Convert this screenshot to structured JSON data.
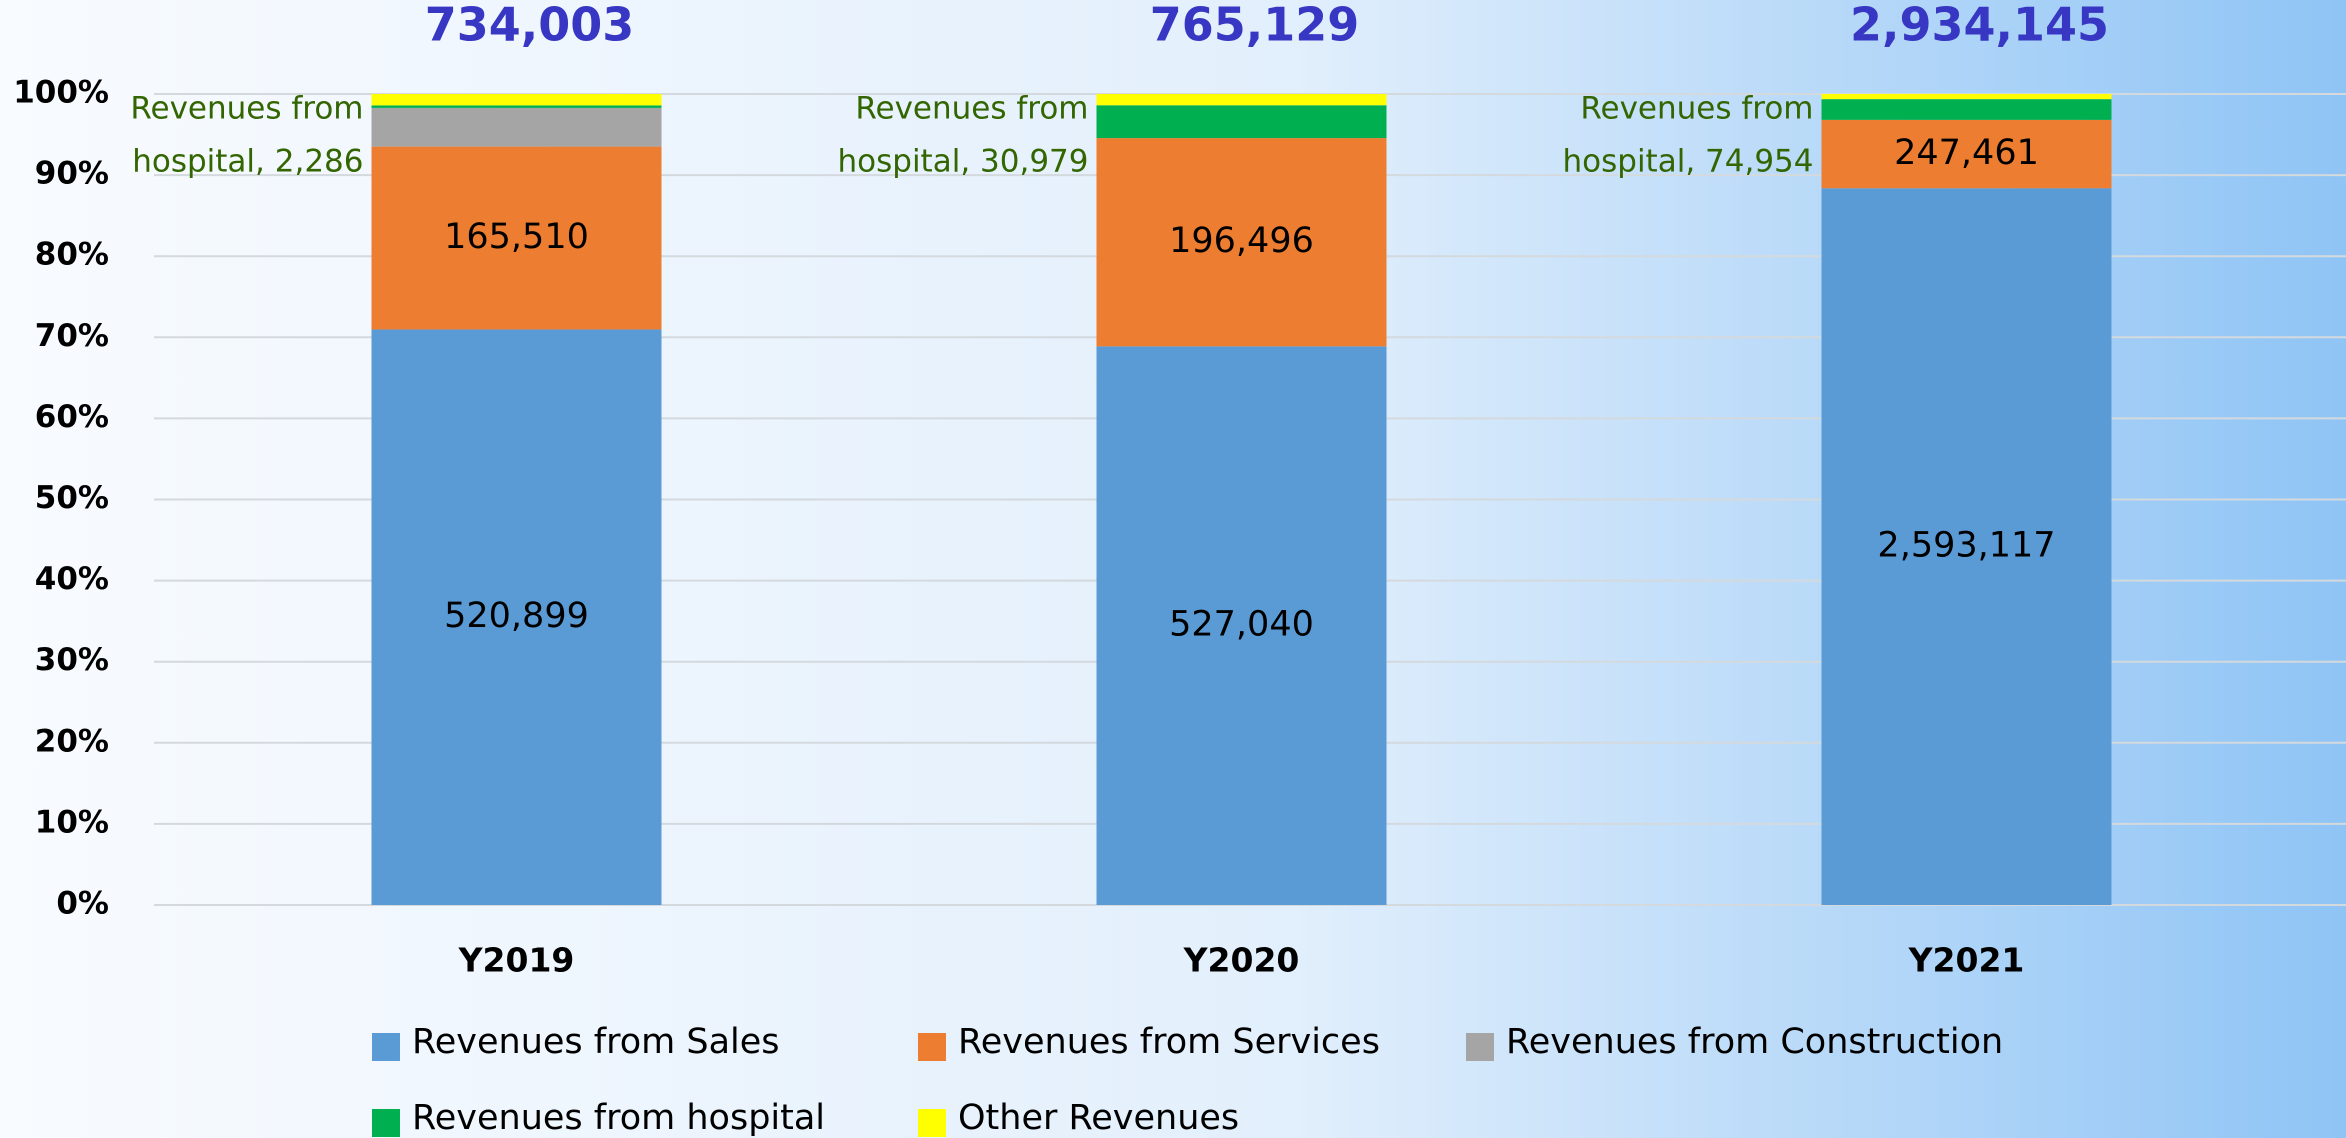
{
  "chart_data": {
    "type": "bar",
    "stacked": "percent",
    "categories": [
      "Y2019",
      "Y2020",
      "Y2021"
    ],
    "totals": [
      734003,
      765129,
      2934145
    ],
    "total_labels": [
      "734,003",
      "765,129",
      "2,934,145"
    ],
    "series": [
      {
        "name": "Revenues from Sales",
        "color": "#5b9bd5",
        "values": [
          520899,
          527040,
          2593117
        ],
        "value_labels": [
          "520,899",
          "527,040",
          "2,593,117"
        ]
      },
      {
        "name": "Revenues from Services",
        "color": "#ed7d31",
        "values": [
          165510,
          196496,
          247461
        ],
        "value_labels": [
          "165,510",
          "196,496",
          "247,461"
        ]
      },
      {
        "name": "Revenues from Construction",
        "color": "#a5a5a5",
        "values": [
          35000,
          0,
          0
        ]
      },
      {
        "name": "Revenues from hospital",
        "color": "#00b050",
        "values": [
          2286,
          30979,
          74954
        ],
        "value_labels": [
          [
            "Revenues from",
            "hospital,  2,286"
          ],
          [
            "Revenues from",
            "hospital,  30,979"
          ],
          [
            "Revenues from",
            "hospital,  74,954"
          ]
        ]
      },
      {
        "name": "Other Revenues",
        "color": "#ffff00",
        "values": [
          10308,
          10614,
          18613
        ]
      }
    ],
    "ylim": [
      0,
      100
    ],
    "yticks": [
      {
        "value": 0,
        "label": "0%"
      },
      {
        "value": 10,
        "label": "10%"
      },
      {
        "value": 20,
        "label": "20%"
      },
      {
        "value": 30,
        "label": "30%"
      },
      {
        "value": 40,
        "label": "40%"
      },
      {
        "value": 50,
        "label": "50%"
      },
      {
        "value": 60,
        "label": "60%"
      },
      {
        "value": 70,
        "label": "70%"
      },
      {
        "value": 80,
        "label": "80%"
      },
      {
        "value": 90,
        "label": "90%"
      },
      {
        "value": 100,
        "label": "100%"
      }
    ],
    "grid": true
  }
}
